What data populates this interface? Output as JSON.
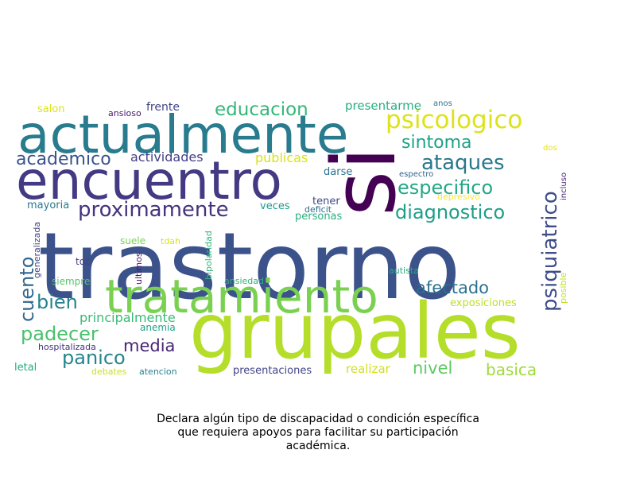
{
  "caption": {
    "line1": "Declara algún tipo de discapacidad o condición específica",
    "line2": "que requiera apoyos para facilitar su participación",
    "line3": "académica."
  },
  "words": [
    {
      "text": "trastorno",
      "color": "#3b528b"
    },
    {
      "text": "grupales",
      "color": "#b5de2b"
    },
    {
      "text": "actualmente",
      "color": "#287c8e"
    },
    {
      "text": "encuentro",
      "color": "#443a83"
    },
    {
      "text": "tratamiento",
      "color": "#7ad151"
    },
    {
      "text": "si",
      "color": "#440154"
    },
    {
      "text": "psicologico",
      "color": "#dde318"
    },
    {
      "text": "psiquiatrico",
      "color": "#3e4c8a"
    },
    {
      "text": "proximamente",
      "color": "#46337e"
    },
    {
      "text": "ataques",
      "color": "#2a788e"
    },
    {
      "text": "especifico",
      "color": "#22a884"
    },
    {
      "text": "diagnostico",
      "color": "#1f9e89"
    },
    {
      "text": "educacion",
      "color": "#35b779"
    },
    {
      "text": "sintoma",
      "color": "#1fa187"
    },
    {
      "text": "academico",
      "color": "#3b528b"
    },
    {
      "text": "bien",
      "color": "#26828e"
    },
    {
      "text": "cuento",
      "color": "#31688e"
    },
    {
      "text": "padecer",
      "color": "#4ac16d"
    },
    {
      "text": "afectado",
      "color": "#2c728e"
    },
    {
      "text": "panico",
      "color": "#25858e"
    },
    {
      "text": "media",
      "color": "#482475"
    },
    {
      "text": "nivel",
      "color": "#5ec962"
    },
    {
      "text": "basica",
      "color": "#a0da39"
    },
    {
      "text": "actividades",
      "color": "#433e85"
    },
    {
      "text": "publicas",
      "color": "#d8e219"
    },
    {
      "text": "presentarme",
      "color": "#29af7f"
    },
    {
      "text": "frente",
      "color": "#404688"
    },
    {
      "text": "principalmente",
      "color": "#3aba76"
    },
    {
      "text": "realizar",
      "color": "#d0e11c"
    },
    {
      "text": "presentaciones",
      "color": "#414487"
    },
    {
      "text": "exposiciones",
      "color": "#bddf26"
    },
    {
      "text": "darse",
      "color": "#2c728e"
    },
    {
      "text": "tener",
      "color": "#3e4989"
    },
    {
      "text": "personas",
      "color": "#29af7f"
    },
    {
      "text": "veces",
      "color": "#1e9b8a"
    },
    {
      "text": "mayoria",
      "color": "#2a788e"
    },
    {
      "text": "salon",
      "color": "#dde318"
    },
    {
      "text": "ansioso",
      "color": "#48186a"
    },
    {
      "text": "suele",
      "color": "#7ad151"
    },
    {
      "text": "anemia",
      "color": "#20a386"
    },
    {
      "text": "siempre",
      "color": "#54c568"
    },
    {
      "text": "toc",
      "color": "#433e85"
    },
    {
      "text": "hospitalizada",
      "color": "#46327e"
    },
    {
      "text": "letal",
      "color": "#25ab82"
    },
    {
      "text": "debates",
      "color": "#cae11f"
    },
    {
      "text": "atencion",
      "color": "#27808e"
    },
    {
      "text": "ansiedad",
      "color": "#2eb37c"
    },
    {
      "text": "autista",
      "color": "#27ad81"
    },
    {
      "text": "posible",
      "color": "#c2df23"
    },
    {
      "text": "tdah",
      "color": "#d8e219"
    },
    {
      "text": "ultimos",
      "color": "#471365"
    },
    {
      "text": "bipolaridad",
      "color": "#31b57b"
    },
    {
      "text": "generalizada",
      "color": "#414487"
    },
    {
      "text": "depresivo",
      "color": "#fde725"
    },
    {
      "text": "deficit",
      "color": "#2d708e"
    },
    {
      "text": "espectro",
      "color": "#33638d"
    },
    {
      "text": "incluso",
      "color": "#481f70"
    },
    {
      "text": "dos",
      "color": "#e5e419"
    },
    {
      "text": "anos",
      "color": "#2c738e"
    }
  ]
}
